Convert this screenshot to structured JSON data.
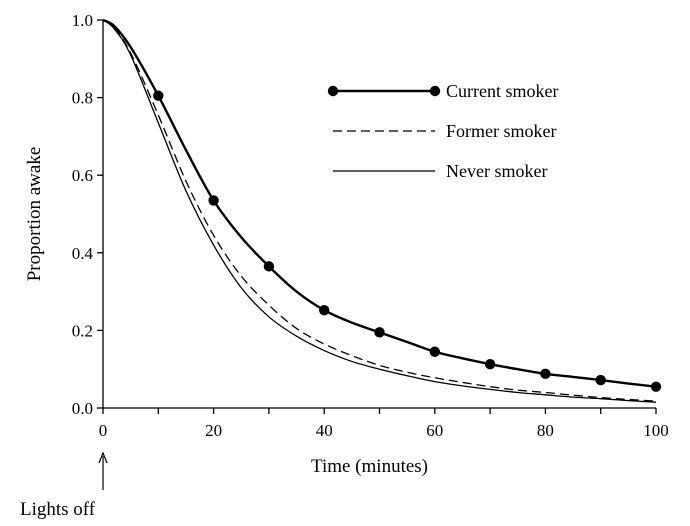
{
  "chart_data": {
    "type": "line",
    "title": "",
    "xlabel": "Time (minutes)",
    "ylabel": "Proportion awake",
    "xlim": [
      0,
      100
    ],
    "ylim": [
      0,
      1.0
    ],
    "x_ticks": [
      "0",
      "20",
      "40",
      "60",
      "80",
      "100"
    ],
    "y_ticks": [
      "0.0",
      "0.2",
      "0.4",
      "0.6",
      "0.8",
      "1.0"
    ],
    "grid": false,
    "legend_position": "top-right",
    "annotation": "Lights off",
    "series": [
      {
        "name": "Current smoker",
        "style": "solid-thick-markers",
        "x": [
          0,
          2,
          5,
          10,
          15,
          20,
          25,
          30,
          35,
          40,
          45,
          50,
          55,
          60,
          65,
          70,
          75,
          80,
          85,
          90,
          95,
          100
        ],
        "y": [
          1.0,
          0.985,
          0.93,
          0.805,
          0.665,
          0.535,
          0.44,
          0.365,
          0.3,
          0.252,
          0.22,
          0.195,
          0.17,
          0.145,
          0.128,
          0.113,
          0.1,
          0.088,
          0.08,
          0.072,
          0.063,
          0.055
        ],
        "marker_x": [
          10,
          20,
          30,
          40,
          50,
          60,
          70,
          80,
          90,
          100
        ],
        "marker_y": [
          0.805,
          0.535,
          0.365,
          0.252,
          0.195,
          0.145,
          0.113,
          0.088,
          0.072,
          0.055
        ]
      },
      {
        "name": "Former smoker",
        "style": "dashed",
        "x": [
          0,
          2,
          5,
          10,
          15,
          20,
          25,
          30,
          35,
          40,
          45,
          50,
          55,
          60,
          65,
          70,
          75,
          80,
          85,
          90,
          95,
          100
        ],
        "y": [
          1.0,
          0.98,
          0.915,
          0.755,
          0.585,
          0.445,
          0.34,
          0.265,
          0.205,
          0.165,
          0.135,
          0.11,
          0.092,
          0.078,
          0.066,
          0.055,
          0.046,
          0.04,
          0.033,
          0.027,
          0.022,
          0.018
        ]
      },
      {
        "name": "Never smoker",
        "style": "solid-thin",
        "x": [
          0,
          2,
          5,
          10,
          15,
          20,
          25,
          30,
          35,
          40,
          45,
          50,
          55,
          60,
          65,
          70,
          75,
          80,
          85,
          90,
          95,
          100
        ],
        "y": [
          1.0,
          0.978,
          0.91,
          0.735,
          0.56,
          0.42,
          0.31,
          0.235,
          0.185,
          0.148,
          0.12,
          0.1,
          0.083,
          0.068,
          0.057,
          0.048,
          0.04,
          0.034,
          0.028,
          0.024,
          0.019,
          0.015
        ]
      }
    ]
  }
}
